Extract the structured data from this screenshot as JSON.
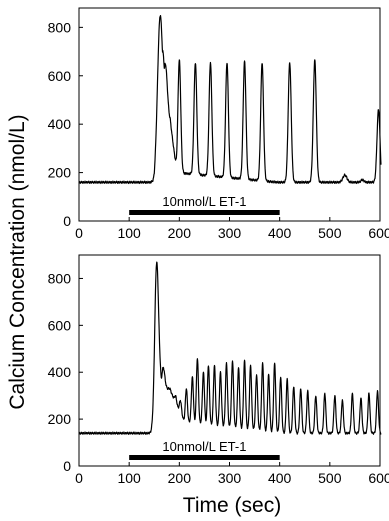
{
  "figure": {
    "ylabel": "Calcium Concentration (nmol/L)",
    "xlabel": "Time (sec)"
  },
  "chart_data": [
    {
      "type": "line",
      "title": "",
      "xlabel": "Time (sec)",
      "ylabel": "Calcium Concentration (nmol/L)",
      "xlim": [
        0,
        600
      ],
      "ylim": [
        0,
        880
      ],
      "xticks": [
        0,
        100,
        200,
        300,
        400,
        500,
        600
      ],
      "yticks": [
        0,
        200,
        400,
        600,
        800
      ],
      "grid": false,
      "annotation": {
        "label": "10nmol/L ET-1",
        "start": 100,
        "end": 400
      },
      "series": [
        {
          "baseline": 160,
          "x_start": 0,
          "x_end": 602,
          "onset": 150,
          "plateau": {
            "start": 170,
            "end": 182,
            "value": 410,
            "decay_end": 195,
            "decay_to": 200
          },
          "peaks": [
            {
              "x": 162,
              "y": 850,
              "w": 5
            },
            {
              "x": 167,
              "y": 700,
              "w": 4
            },
            {
              "x": 172,
              "y": 650,
              "w": 4
            },
            {
              "x": 200,
              "y": 665,
              "w": 2.8
            },
            {
              "x": 232,
              "y": 655,
              "w": 2.8
            },
            {
              "x": 262,
              "y": 655,
              "w": 2.8
            },
            {
              "x": 295,
              "y": 655,
              "w": 2.8
            },
            {
              "x": 330,
              "y": 660,
              "w": 2.8
            },
            {
              "x": 365,
              "y": 655,
              "w": 2.8
            },
            {
              "x": 420,
              "y": 655,
              "w": 3
            },
            {
              "x": 470,
              "y": 665,
              "w": 3
            },
            {
              "x": 530,
              "y": 190,
              "w": 4
            },
            {
              "x": 565,
              "y": 170,
              "w": 3
            },
            {
              "x": 597,
              "y": 460,
              "w": 3
            }
          ]
        }
      ]
    },
    {
      "type": "line",
      "title": "",
      "xlabel": "Time (sec)",
      "ylabel": "Calcium Concentration (nmol/L)",
      "xlim": [
        0,
        600
      ],
      "ylim": [
        0,
        900
      ],
      "xticks": [
        0,
        100,
        200,
        300,
        400,
        500,
        600
      ],
      "yticks": [
        0,
        200,
        400,
        600,
        800
      ],
      "grid": false,
      "annotation": {
        "label": "10nmol/L ET-1",
        "start": 100,
        "end": 400
      },
      "series": [
        {
          "baseline": 140,
          "x_start": 0,
          "x_end": 602,
          "onset": 150,
          "plateau": {
            "start": 162,
            "end": 180,
            "value": 330,
            "decay_end": 210,
            "decay_to": 190
          },
          "peaks": [
            {
              "x": 155,
              "y": 870,
              "w": 4
            },
            {
              "x": 152,
              "y": 500,
              "w": 2
            },
            {
              "x": 168,
              "y": 420,
              "w": 3
            },
            {
              "x": 180,
              "y": 330,
              "w": 2
            },
            {
              "x": 192,
              "y": 300,
              "w": 2
            },
            {
              "x": 202,
              "y": 280,
              "w": 2
            },
            {
              "x": 214,
              "y": 330,
              "w": 2
            },
            {
              "x": 226,
              "y": 380,
              "w": 2
            },
            {
              "x": 236,
              "y": 460,
              "w": 2
            },
            {
              "x": 248,
              "y": 400,
              "w": 2
            },
            {
              "x": 258,
              "y": 430,
              "w": 2
            },
            {
              "x": 270,
              "y": 430,
              "w": 2
            },
            {
              "x": 282,
              "y": 400,
              "w": 2
            },
            {
              "x": 294,
              "y": 440,
              "w": 2
            },
            {
              "x": 306,
              "y": 450,
              "w": 2
            },
            {
              "x": 318,
              "y": 420,
              "w": 2
            },
            {
              "x": 330,
              "y": 450,
              "w": 2
            },
            {
              "x": 342,
              "y": 430,
              "w": 2
            },
            {
              "x": 354,
              "y": 390,
              "w": 2
            },
            {
              "x": 366,
              "y": 440,
              "w": 2
            },
            {
              "x": 378,
              "y": 390,
              "w": 2
            },
            {
              "x": 390,
              "y": 440,
              "w": 2
            },
            {
              "x": 402,
              "y": 380,
              "w": 2
            },
            {
              "x": 415,
              "y": 370,
              "w": 2
            },
            {
              "x": 428,
              "y": 340,
              "w": 2
            },
            {
              "x": 442,
              "y": 330,
              "w": 2
            },
            {
              "x": 456,
              "y": 320,
              "w": 2
            },
            {
              "x": 472,
              "y": 300,
              "w": 2
            },
            {
              "x": 490,
              "y": 310,
              "w": 2
            },
            {
              "x": 510,
              "y": 300,
              "w": 2
            },
            {
              "x": 525,
              "y": 280,
              "w": 2
            },
            {
              "x": 545,
              "y": 310,
              "w": 2
            },
            {
              "x": 562,
              "y": 290,
              "w": 2
            },
            {
              "x": 578,
              "y": 310,
              "w": 2
            },
            {
              "x": 595,
              "y": 320,
              "w": 2
            }
          ]
        }
      ]
    }
  ]
}
